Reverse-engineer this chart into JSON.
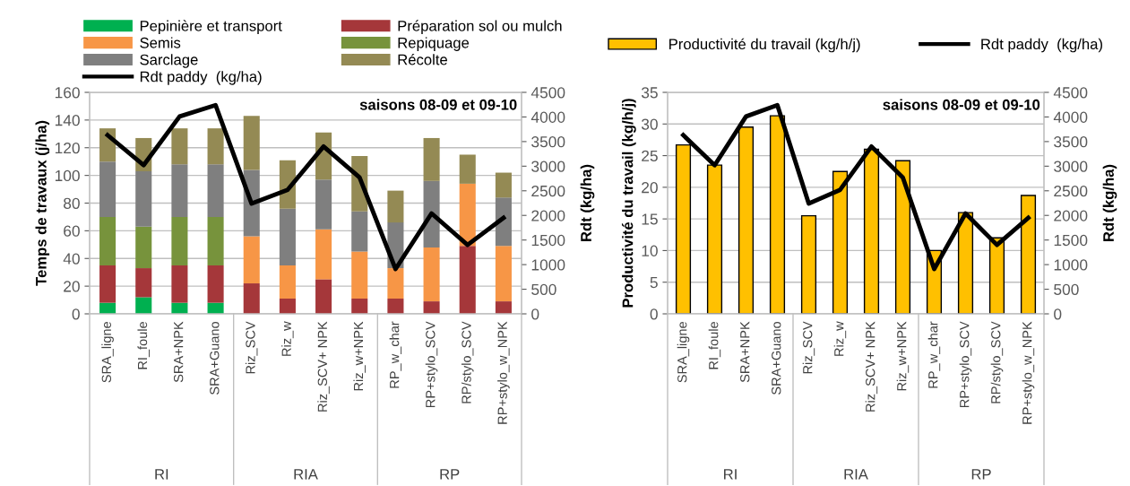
{
  "chart_data": [
    {
      "type": "bar",
      "stacked": true,
      "ylabel": "Temps de travaux (j/ha)",
      "y2label": "Rdt (kg/ha)",
      "categories": [
        "SRA_ligne",
        "RI_foule",
        "SRA+NPK",
        "SRA+Guano",
        "Riz_SCV",
        "Riz_w",
        "Riz_SCV+ NPK",
        "Riz_w+NPK",
        "RP_w_char",
        "RP+stylo_SCV",
        "RP/stylo_SCV",
        "RP+stylo_w_NPK"
      ],
      "series": [
        {
          "name": "Pepinière et transport",
          "color": "#00b050",
          "values": [
            8,
            12,
            8,
            8,
            0,
            0,
            0,
            0,
            0,
            0,
            0,
            0
          ]
        },
        {
          "name": "Préparation sol ou mulch",
          "color": "#a5373a",
          "values": [
            27,
            21,
            27,
            27,
            22,
            11,
            25,
            11,
            11,
            9,
            49,
            9
          ]
        },
        {
          "name": "Semis",
          "color": "#f79646",
          "values": [
            0,
            0,
            0,
            0,
            34,
            24,
            36,
            34,
            22,
            39,
            45,
            40
          ]
        },
        {
          "name": "Repiquage",
          "color": "#77933c",
          "values": [
            35,
            30,
            35,
            35,
            0,
            0,
            0,
            0,
            0,
            0,
            0,
            0
          ]
        },
        {
          "name": "Sarclage",
          "color": "#7f7f7f",
          "values": [
            40,
            40,
            38,
            38,
            48,
            41,
            36,
            29,
            33,
            48,
            0,
            35
          ]
        },
        {
          "name": "Récolte",
          "color": "#948a54",
          "values": [
            24,
            24,
            26,
            26,
            39,
            35,
            34,
            40,
            23,
            31,
            21,
            18
          ]
        },
        {
          "name": "Rdt paddy  (kg/ha)",
          "color": "#000000",
          "type": "line",
          "axis": "y2",
          "values": [
            3630,
            3020,
            4010,
            4240,
            2240,
            2520,
            3400,
            2770,
            910,
            2040,
            1400,
            1950
          ]
        }
      ],
      "ylim": [
        0,
        160
      ],
      "yticks": [
        0,
        20,
        40,
        60,
        80,
        100,
        120,
        140,
        160
      ],
      "y2lim": [
        0,
        4500
      ],
      "y2ticks": [
        0,
        500,
        1000,
        1500,
        2000,
        2500,
        3000,
        3500,
        4000,
        4500
      ],
      "annotations": [
        "saisons 08-09 et 09-10",
        "RI",
        "RIA",
        "RP"
      ],
      "grid": "y",
      "legend": "top",
      "marker": "none",
      "line_style": "solid"
    },
    {
      "type": "bar",
      "ylabel": "Productivité du travail (kg/h/j)",
      "y2label": "Rdt (kg/ha)",
      "categories": [
        "SRA_ligne",
        "RI_foule",
        "SRA+NPK",
        "SRA+Guano",
        "Riz_SCV",
        "Riz_w",
        "Riz_SCV+ NPK",
        "Riz_w+NPK",
        "RP_w_char",
        "RP+stylo_SCV",
        "RP/stylo_SCV",
        "RP+stylo_w_NPK"
      ],
      "series": [
        {
          "name": "Productivité du travail (kg/h/j)",
          "color": "#ffc000",
          "values": [
            26.7,
            23.5,
            29.5,
            31.3,
            15.5,
            22.5,
            26,
            24.2,
            10,
            16,
            12,
            18.7
          ]
        },
        {
          "name": "Rdt paddy  (kg/ha)",
          "color": "#000000",
          "type": "line",
          "axis": "y2",
          "values": [
            3630,
            3020,
            4010,
            4240,
            2240,
            2520,
            3400,
            2770,
            910,
            2040,
            1400,
            1950
          ]
        }
      ],
      "ylim": [
        0,
        35
      ],
      "yticks": [
        0,
        5,
        10,
        15,
        20,
        25,
        30,
        35
      ],
      "y2lim": [
        0,
        4500
      ],
      "y2ticks": [
        0,
        500,
        1000,
        1500,
        2000,
        2500,
        3000,
        3500,
        4000,
        4500
      ],
      "annotations": [
        "saisons 08-09 et 09-10",
        "RI",
        "RIA",
        "RP"
      ],
      "grid": "y",
      "legend": "top",
      "marker": "none",
      "line_style": "solid"
    }
  ]
}
